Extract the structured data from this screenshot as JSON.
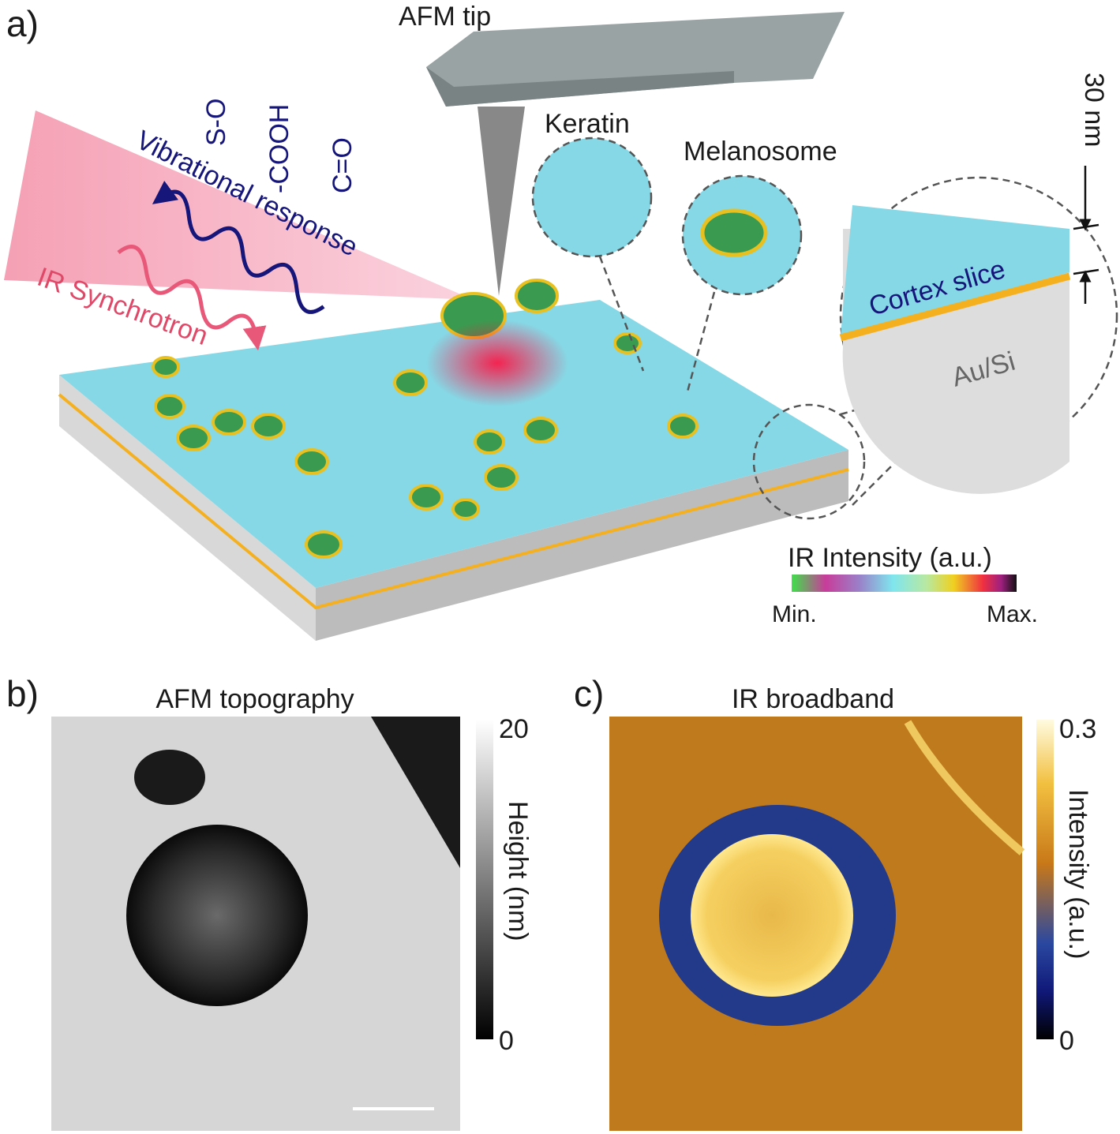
{
  "panel_a": {
    "label": "a)",
    "tip": "AFM tip",
    "bonds": [
      "S-O",
      "-COOH",
      "C=O"
    ],
    "response": "Vibrational response",
    "source": "IR Synchrotron",
    "insets": [
      "Keratin",
      "Melanosome"
    ],
    "thickness": "30 nm",
    "layers": [
      "Cortex slice",
      "Au/Si"
    ],
    "colorbar": {
      "title": "IR Intensity (a.u.)",
      "min": "Min.",
      "max": "Max."
    }
  },
  "panel_b": {
    "label": "b)",
    "title": "AFM topography",
    "colorbar": {
      "top": "20",
      "bottom": "0",
      "title": "Height (nm)"
    }
  },
  "panel_c": {
    "label": "c)",
    "title": "IR broadband",
    "colorbar": {
      "top": "0.3",
      "bottom": "0",
      "title": "Intensity (a.u.)"
    }
  }
}
